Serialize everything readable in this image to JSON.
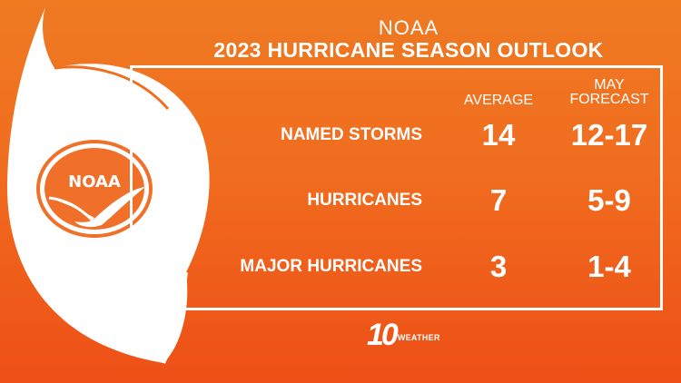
{
  "header": {
    "org": "NOAA",
    "title": "2023 HURRICANE SEASON OUTLOOK"
  },
  "columns": {
    "average": "AVERAGE",
    "forecast_line1": "MAY",
    "forecast_line2": "FORECAST"
  },
  "rows": [
    {
      "label": "NAMED STORMS",
      "average": "14",
      "forecast": "12-17"
    },
    {
      "label": "HURRICANES",
      "average": "7",
      "forecast": "5-9"
    },
    {
      "label": "MAJOR HURRICANES",
      "average": "3",
      "forecast": "1-4"
    }
  ],
  "logo": {
    "text": "NOAA"
  },
  "brand": {
    "number": "10",
    "word": "WEATHER"
  },
  "colors": {
    "background": "#f06c1f",
    "foreground": "#ffffff"
  }
}
